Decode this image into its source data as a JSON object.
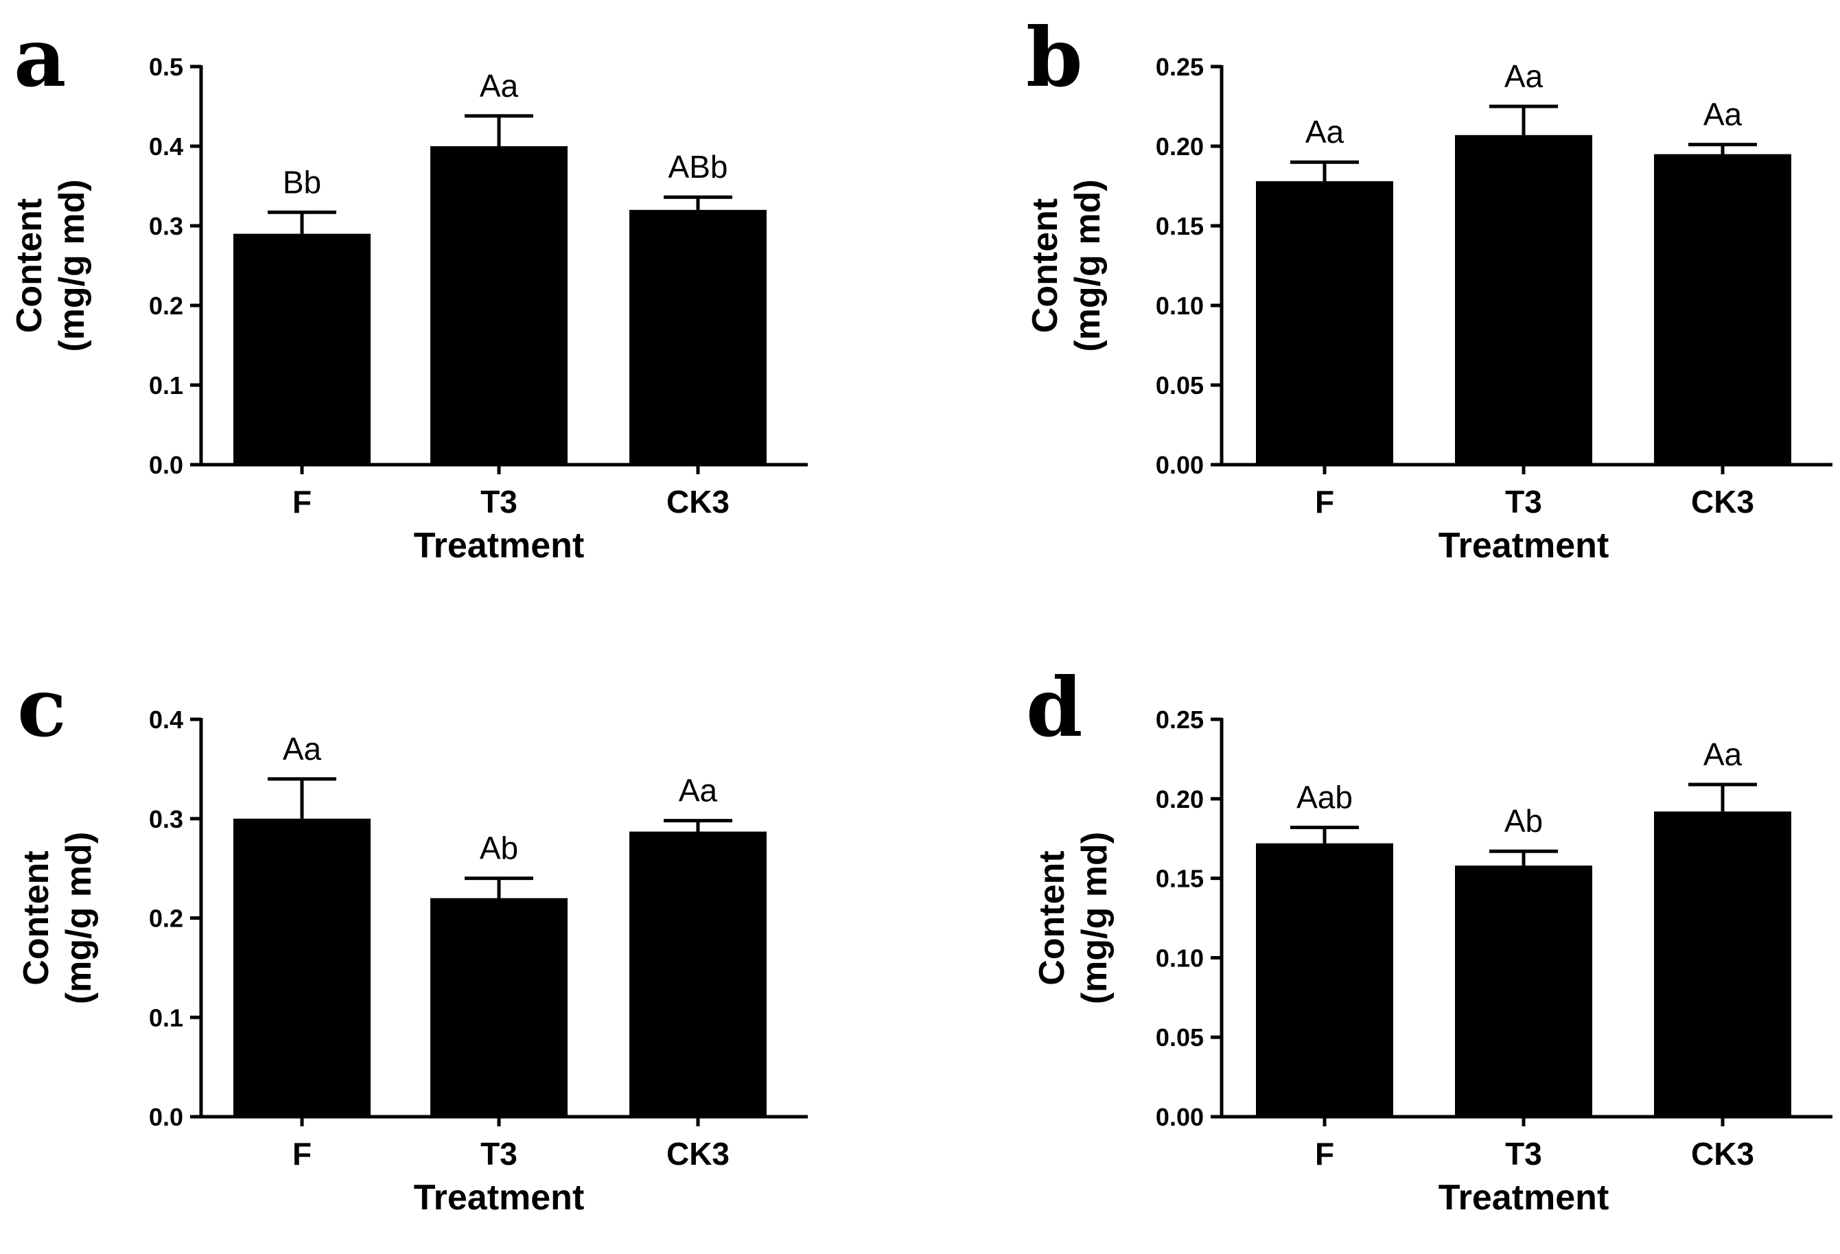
{
  "chart_data": [
    {
      "panel": "a",
      "type": "bar",
      "categories": [
        "F",
        "T3",
        "CK3"
      ],
      "values": [
        0.29,
        0.4,
        0.32
      ],
      "errors": [
        0.027,
        0.038,
        0.016
      ],
      "significance": [
        "Bb",
        "Aa",
        "ABb"
      ],
      "yticks": [
        "0.0",
        "0.1",
        "0.2",
        "0.3",
        "0.4",
        "0.5"
      ],
      "ylim": [
        0,
        0.5
      ],
      "xlabel": "Treatment",
      "ylabel_line1": "Content",
      "ylabel_line2": "(mg/g md)"
    },
    {
      "panel": "b",
      "type": "bar",
      "categories": [
        "F",
        "T3",
        "CK3"
      ],
      "values": [
        0.178,
        0.207,
        0.195
      ],
      "errors": [
        0.012,
        0.018,
        0.006
      ],
      "significance": [
        "Aa",
        "Aa",
        "Aa"
      ],
      "yticks": [
        "0.00",
        "0.05",
        "0.10",
        "0.15",
        "0.20",
        "0.25"
      ],
      "ylim": [
        0,
        0.25
      ],
      "xlabel": "Treatment",
      "ylabel_line1": "Content",
      "ylabel_line2": "(mg/g md)"
    },
    {
      "panel": "c",
      "type": "bar",
      "categories": [
        "F",
        "T3",
        "CK3"
      ],
      "values": [
        0.3,
        0.22,
        0.287
      ],
      "errors": [
        0.04,
        0.02,
        0.011
      ],
      "significance": [
        "Aa",
        "Ab",
        "Aa"
      ],
      "yticks": [
        "0.0",
        "0.1",
        "0.2",
        "0.3",
        "0.4"
      ],
      "ylim": [
        0,
        0.4
      ],
      "xlabel": "Treatment",
      "ylabel_line1": "Content",
      "ylabel_line2": "(mg/g md)"
    },
    {
      "panel": "d",
      "type": "bar",
      "categories": [
        "F",
        "T3",
        "CK3"
      ],
      "values": [
        0.172,
        0.158,
        0.192
      ],
      "errors": [
        0.01,
        0.009,
        0.017
      ],
      "significance": [
        "Aab",
        "Ab",
        "Aa"
      ],
      "yticks": [
        "0.00",
        "0.05",
        "0.10",
        "0.15",
        "0.20",
        "0.25"
      ],
      "ylim": [
        0,
        0.25
      ],
      "xlabel": "Treatment",
      "ylabel_line1": "Content",
      "ylabel_line2": "(mg/g md)"
    }
  ]
}
